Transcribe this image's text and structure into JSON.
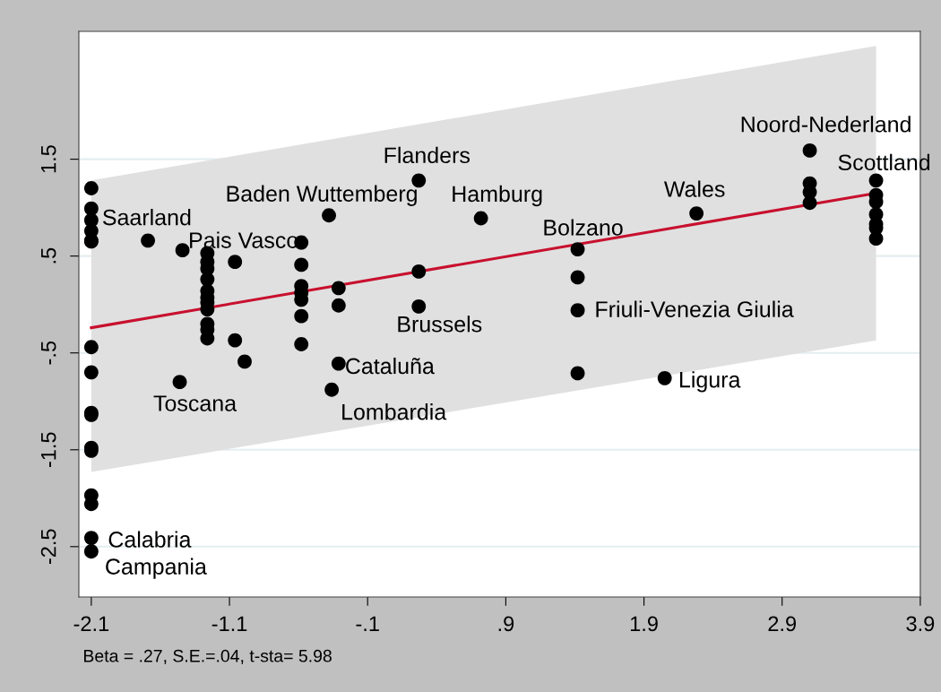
{
  "chart_data": {
    "type": "scatter",
    "xlim": [
      -2.19,
      3.9
    ],
    "ylim": [
      -3.02,
      2.82
    ],
    "xticks": [
      -2.1,
      -1.1,
      {
        "value": -0.1,
        "label": "-.1"
      },
      {
        "value": 0.9,
        "label": ".9"
      },
      1.9,
      2.9,
      3.9
    ],
    "yticks": [
      -2.5,
      -1.5,
      {
        "value": -0.5,
        "label": "-.5"
      },
      {
        "value": 0.5,
        "label": ".5"
      },
      1.5
    ],
    "grid": "y",
    "legend": false,
    "series": [
      {
        "marker": "circle",
        "color": "#000000",
        "x": [
          -2.1,
          -2.1,
          -2.1,
          -2.1,
          -2.1,
          -2.1,
          -2.1,
          -2.1,
          -2.1,
          -2.1,
          -2.1,
          -2.1,
          -2.1,
          -2.1,
          -2.1,
          -2.1,
          -1.69,
          -1.44,
          -1.26,
          -1.26,
          -1.26,
          -1.26,
          -1.26,
          -1.26,
          -1.26,
          -1.26,
          -1.26,
          -1.26,
          -1.26,
          -1.46,
          -1.06,
          -1.06,
          -0.99,
          -0.58,
          -0.58,
          -0.58,
          -0.58,
          -0.58,
          -0.58,
          -0.58,
          -0.38,
          -0.31,
          -0.31,
          -0.31,
          -0.36,
          0.27,
          0.72,
          0.27,
          0.27,
          1.42,
          1.42,
          1.42,
          1.42,
          2.28,
          2.05,
          3.1,
          3.1,
          3.1,
          3.1,
          3.58,
          3.58,
          3.58,
          3.58,
          3.58,
          3.58,
          3.58
        ],
        "values": [
          1.2,
          0.99,
          0.87,
          0.76,
          0.65,
          -0.44,
          -0.7,
          -1.12,
          -1.14,
          -1.48,
          -1.51,
          -1.97,
          -2.06,
          -2.41,
          -2.55,
          0.66,
          0.66,
          0.56,
          0.53,
          0.44,
          0.37,
          0.26,
          0.14,
          0.07,
          0.02,
          -0.05,
          -0.2,
          -0.26,
          -0.35,
          -0.8,
          0.44,
          -0.37,
          -0.59,
          0.64,
          0.41,
          0.19,
          0.12,
          0.05,
          -0.12,
          -0.41,
          0.92,
          0.17,
          -0.01,
          -0.61,
          -0.88,
          1.28,
          0.89,
          0.34,
          -0.02,
          0.57,
          0.28,
          -0.06,
          -0.71,
          0.94,
          -0.76,
          1.59,
          1.25,
          1.16,
          1.05,
          1.28,
          1.13,
          1.06,
          0.93,
          0.83,
          0.79,
          0.68
        ]
      },
      {
        "type": "line",
        "marker": "none",
        "color": "#c8102e",
        "x": [
          -2.1,
          3.58
        ],
        "values": [
          -0.24,
          1.15
        ],
        "lower": [
          -1.73,
          -0.37
        ],
        "upper": [
          1.28,
          2.67
        ]
      }
    ],
    "annotations": [
      {
        "text": "Saarland",
        "x": -2.1,
        "y": 0.87
      },
      {
        "text": "Pais Vasco",
        "x": -1.44,
        "y": 0.56
      },
      {
        "text": "Baden Wuttemberg",
        "x": -0.38,
        "y": 0.92
      },
      {
        "text": "Flanders",
        "x": 0.27,
        "y": 1.28
      },
      {
        "text": "Hamburg",
        "x": 0.72,
        "y": 0.89
      },
      {
        "text": "Bolzano",
        "x": 1.42,
        "y": 0.57
      },
      {
        "text": "Wales",
        "x": 2.28,
        "y": 0.94
      },
      {
        "text": "Noord-Nederland",
        "x": 3.1,
        "y": 1.59
      },
      {
        "text": "Scottland",
        "x": 3.58,
        "y": 1.28
      },
      {
        "text": "Friuli-Venezia Giulia",
        "x": 1.42,
        "y": -0.06
      },
      {
        "text": "Brussels",
        "x": 0.27,
        "y": -0.02
      },
      {
        "text": "Cataluña",
        "x": -0.31,
        "y": -0.61
      },
      {
        "text": "Lombardia",
        "x": -0.36,
        "y": -0.88
      },
      {
        "text": "Toscana",
        "x": -1.46,
        "y": -0.8
      },
      {
        "text": "Ligura",
        "x": 2.05,
        "y": -0.76
      },
      {
        "text": "Calabria",
        "x": -2.1,
        "y": -2.41
      },
      {
        "text": "Campania",
        "x": -2.1,
        "y": -2.55
      },
      "Beta = .27, S.E.=.04, t-sta= 5.98"
    ]
  }
}
